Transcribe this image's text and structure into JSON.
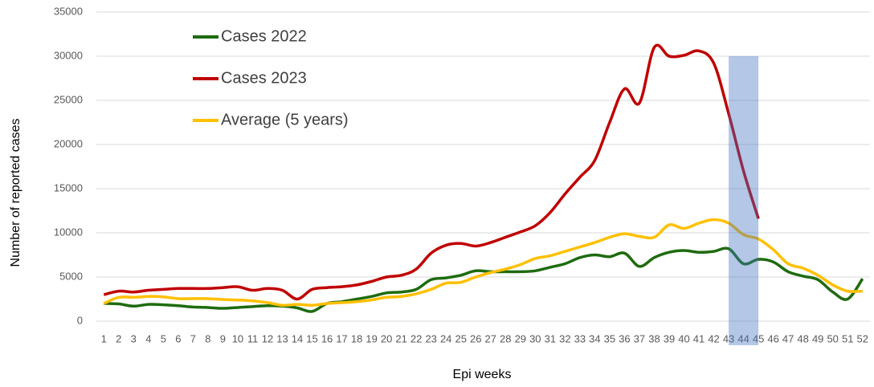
{
  "chart_data": {
    "type": "line",
    "x_label": "Epi weeks",
    "y_label": "Number of reported cases",
    "categories": [
      "1",
      "2",
      "3",
      "4",
      "5",
      "6",
      "7",
      "8",
      "9",
      "10",
      "11",
      "12",
      "13",
      "14",
      "15",
      "16",
      "17",
      "18",
      "19",
      "20",
      "21",
      "22",
      "23",
      "24",
      "25",
      "26",
      "27",
      "28",
      "29",
      "30",
      "31",
      "32",
      "33",
      "34",
      "35",
      "36",
      "37",
      "38",
      "39",
      "40",
      "41",
      "42",
      "43",
      "44",
      "45",
      "46",
      "47",
      "48",
      "49",
      "50",
      "51",
      "52"
    ],
    "series": [
      {
        "name": "Cases 2022",
        "color": "#1e6b0f",
        "values": [
          2000,
          1950,
          1700,
          1900,
          1850,
          1750,
          1600,
          1550,
          1450,
          1550,
          1650,
          1750,
          1700,
          1500,
          1100,
          2000,
          2200,
          2500,
          2800,
          3200,
          3300,
          3600,
          4700,
          4900,
          5200,
          5700,
          5600,
          5600,
          5600,
          5700,
          6100,
          6500,
          7200,
          7500,
          7300,
          7700,
          6200,
          7200,
          7800,
          8000,
          7800,
          7900,
          8200,
          6500,
          7000,
          6700,
          5600,
          5100,
          4700,
          3300,
          2500,
          4800
        ]
      },
      {
        "name": "Cases 2023",
        "color": "#c00000",
        "values": [
          3000,
          3400,
          3300,
          3500,
          3600,
          3700,
          3700,
          3700,
          3800,
          3900,
          3500,
          3700,
          3500,
          2500,
          3600,
          3800,
          3900,
          4100,
          4500,
          5000,
          5200,
          5900,
          7700,
          8600,
          8800,
          8500,
          8900,
          9500,
          10100,
          10800,
          12300,
          14400,
          16300,
          18200,
          22500,
          26300,
          24700,
          31000,
          30000,
          30100,
          30600,
          29200,
          23500,
          17000,
          11600,
          null,
          null,
          null,
          null,
          null,
          null,
          null
        ]
      },
      {
        "name": "Average (5 years)",
        "color": "#ffc000",
        "values": [
          2000,
          2700,
          2700,
          2800,
          2750,
          2550,
          2550,
          2550,
          2450,
          2400,
          2300,
          2100,
          1800,
          1900,
          1800,
          2000,
          2100,
          2200,
          2400,
          2700,
          2800,
          3100,
          3600,
          4300,
          4400,
          5000,
          5500,
          5900,
          6400,
          7100,
          7400,
          7900,
          8400,
          8900,
          9500,
          9900,
          9600,
          9500,
          10900,
          10500,
          11100,
          11500,
          11100,
          9800,
          9300,
          8100,
          6500,
          6000,
          5200,
          4100,
          3400,
          3400
        ]
      }
    ],
    "highlight": {
      "weeks": [
        43,
        45
      ],
      "top": 30000,
      "color": "#4472c4"
    },
    "ylim": [
      0,
      35000
    ],
    "yticks": [
      0,
      5000,
      10000,
      15000,
      20000,
      25000,
      30000,
      35000
    ],
    "grid": true,
    "legend": "top-left"
  }
}
